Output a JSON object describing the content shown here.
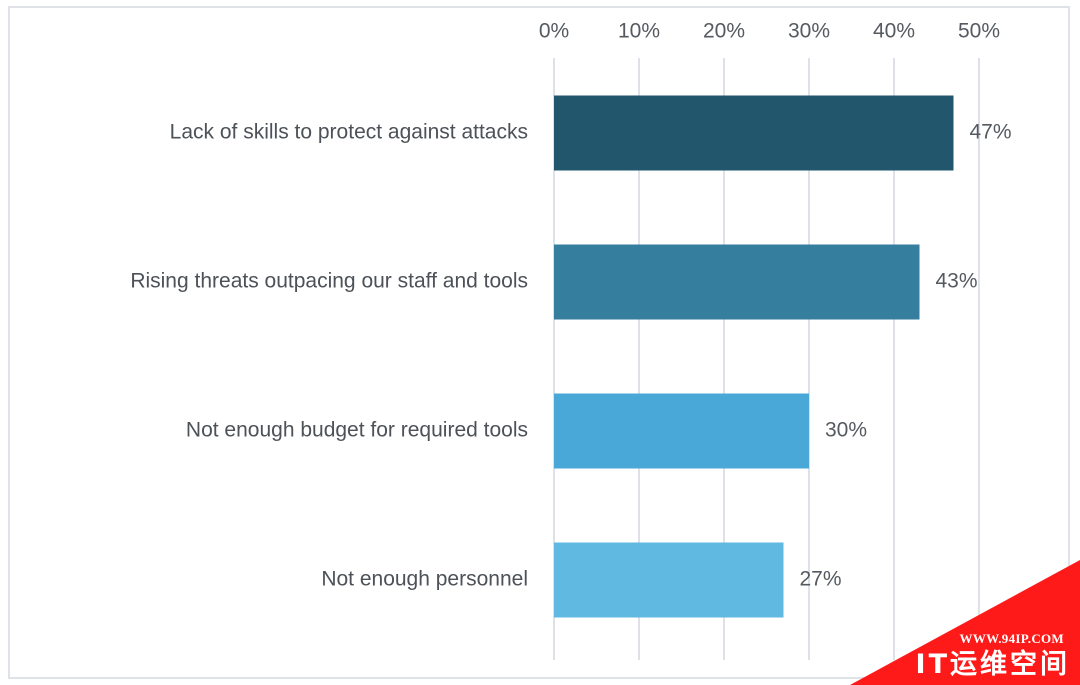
{
  "chart_data": {
    "type": "bar",
    "orientation": "horizontal",
    "title": "",
    "xlabel": "",
    "ylabel": "",
    "categories": [
      "Lack of skills to protect against attacks",
      "Rising threats outpacing our staff and tools",
      "Not enough budget for required tools",
      "Not enough personnel"
    ],
    "values": [
      47,
      43,
      30,
      27
    ],
    "value_labels": [
      "47%",
      "43%",
      "30%",
      "27%"
    ],
    "bar_colors": [
      "#22566c",
      "#357e9e",
      "#4aa8d8",
      "#5fb9e0"
    ],
    "xlim": [
      0,
      50
    ],
    "xticks": [
      0,
      10,
      20,
      30,
      40,
      50
    ],
    "xtick_labels": [
      "0%",
      "10%",
      "20%",
      "30%",
      "40%",
      "50%"
    ],
    "x_axis_position": "top",
    "grid": true,
    "legend": "none"
  },
  "watermark": {
    "url": "WWW.94IP.COM",
    "name": "IT运维空间",
    "color": "#ff1a1a"
  }
}
